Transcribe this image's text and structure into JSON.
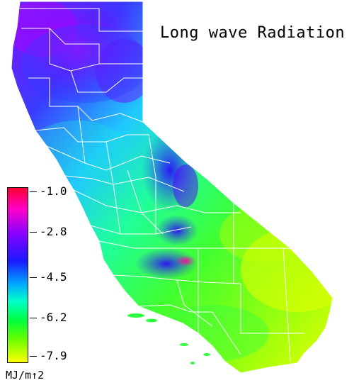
{
  "title": "Long wave Radiation",
  "legend": {
    "ticks": [
      "-1.0",
      "-2.8",
      "-4.5",
      "-6.2",
      "-7.9"
    ],
    "units": "MJ/m↑2",
    "colors": [
      "#ff0030",
      "#ff00c8",
      "#8a00ff",
      "#1a1aff",
      "#00a8ff",
      "#00ffc8",
      "#00ff40",
      "#60ff00",
      "#ffff00"
    ]
  },
  "map": {
    "region": "California",
    "county_border_color": "#ffffff"
  }
}
